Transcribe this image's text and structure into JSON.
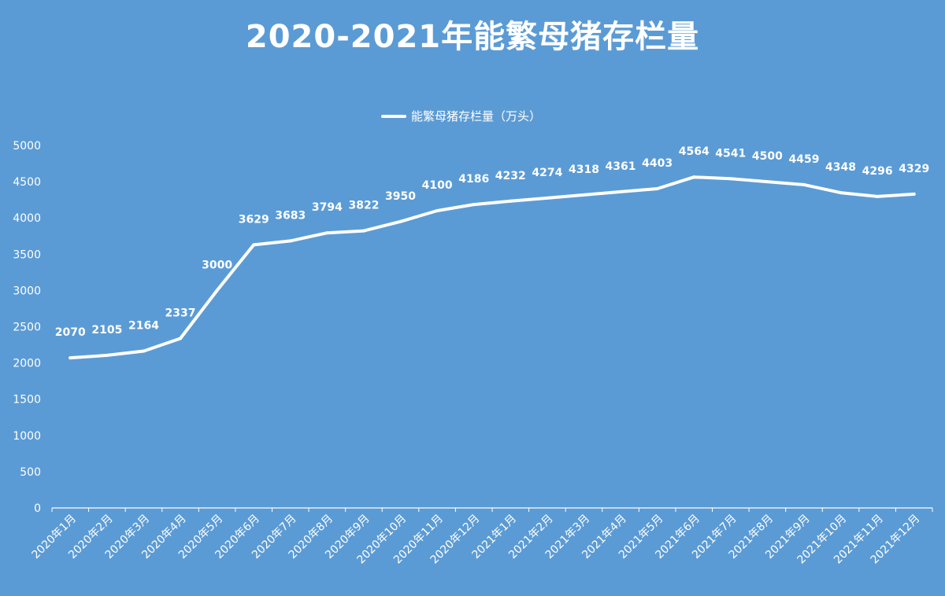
{
  "colors": {
    "background": "#5b9bd5",
    "line": "#ffffff",
    "text": "#ffffff"
  },
  "chart_data": {
    "type": "line",
    "title": "2020-2021年能繁母猪存栏量",
    "legend_position": "top-center",
    "xlabel": "",
    "ylabel": "",
    "ylim": [
      0,
      5000
    ],
    "yticks": [
      0,
      500,
      1000,
      1500,
      2000,
      2500,
      3000,
      3500,
      4000,
      4500,
      5000
    ],
    "categories": [
      "2020年1月",
      "2020年2月",
      "2020年3月",
      "2020年4月",
      "2020年5月",
      "2020年6月",
      "2020年7月",
      "2020年8月",
      "2020年9月",
      "2020年10月",
      "2020年11月",
      "2020年12月",
      "2021年1月",
      "2021年2月",
      "2021年3月",
      "2021年4月",
      "2021年5月",
      "2021年6月",
      "2021年7月",
      "2021年8月",
      "2021年9月",
      "2021年10月",
      "2021年11月",
      "2021年12月"
    ],
    "series": [
      {
        "name": "能繁母猪存栏量（万头）",
        "values": [
          2070,
          2105,
          2164,
          2337,
          3000,
          3629,
          3683,
          3794,
          3822,
          3950,
          4100,
          4186,
          4232,
          4274,
          4318,
          4361,
          4403,
          4564,
          4541,
          4500,
          4459,
          4348,
          4296,
          4329
        ]
      }
    ]
  }
}
